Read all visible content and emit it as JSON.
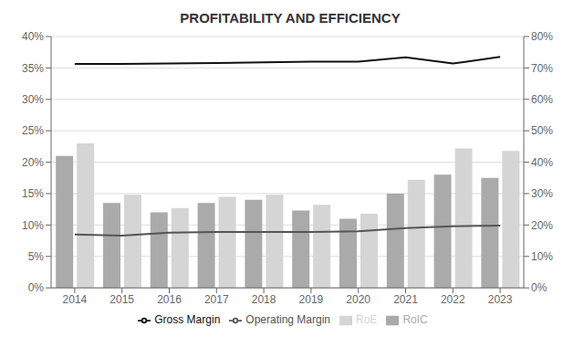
{
  "chart_data": {
    "type": "bar",
    "title": "PROFITABILITY AND EFFICIENCY",
    "categories": [
      "2014",
      "2015",
      "2016",
      "2017",
      "2018",
      "2019",
      "2020",
      "2021",
      "2022",
      "2023"
    ],
    "series": [
      {
        "name": "RoIC",
        "type": "bar",
        "color": "#aaaaaa",
        "values": [
          0.21,
          0.135,
          0.12,
          0.135,
          0.14,
          0.123,
          0.11,
          0.15,
          0.18,
          0.175
        ]
      },
      {
        "name": "RoE",
        "type": "bar",
        "color": "#d5d5d5",
        "values": [
          0.23,
          0.148,
          0.127,
          0.145,
          0.148,
          0.132,
          0.118,
          0.172,
          0.222,
          0.218
        ]
      },
      {
        "name": "Operating Margin",
        "type": "line",
        "color": "#555555",
        "values": [
          0.085,
          0.083,
          0.088,
          0.089,
          0.089,
          0.089,
          0.09,
          0.095,
          0.098,
          0.099
        ]
      },
      {
        "name": "Gross Margin",
        "type": "line",
        "color": "#111111",
        "axis": "y2",
        "values": [
          0.713,
          0.713,
          0.714,
          0.716,
          0.718,
          0.72,
          0.72,
          0.734,
          0.714,
          0.735
        ]
      }
    ],
    "ylim": [
      0,
      0.4
    ],
    "yticks": [
      {
        "value": 0.0,
        "label": "0%"
      },
      {
        "value": 0.05,
        "label": "5%"
      },
      {
        "value": 0.1,
        "label": "10%"
      },
      {
        "value": 0.15,
        "label": "15%"
      },
      {
        "value": 0.2,
        "label": "20%"
      },
      {
        "value": 0.25,
        "label": "25%"
      },
      {
        "value": 0.3,
        "label": "30%"
      },
      {
        "value": 0.35,
        "label": "35%"
      },
      {
        "value": 0.4,
        "label": "40%"
      }
    ],
    "y2lim": [
      0,
      0.8
    ],
    "y2ticks": [
      {
        "value": 0.0,
        "label": "0%"
      },
      {
        "value": 0.1,
        "label": "10%"
      },
      {
        "value": 0.2,
        "label": "20%"
      },
      {
        "value": 0.3,
        "label": "30%"
      },
      {
        "value": 0.4,
        "label": "40%"
      },
      {
        "value": 0.5,
        "label": "50%"
      },
      {
        "value": 0.6,
        "label": "60%"
      },
      {
        "value": 0.7,
        "label": "70%"
      },
      {
        "value": 0.8,
        "label": "80%"
      }
    ],
    "grid": true,
    "legend": "bottom"
  }
}
